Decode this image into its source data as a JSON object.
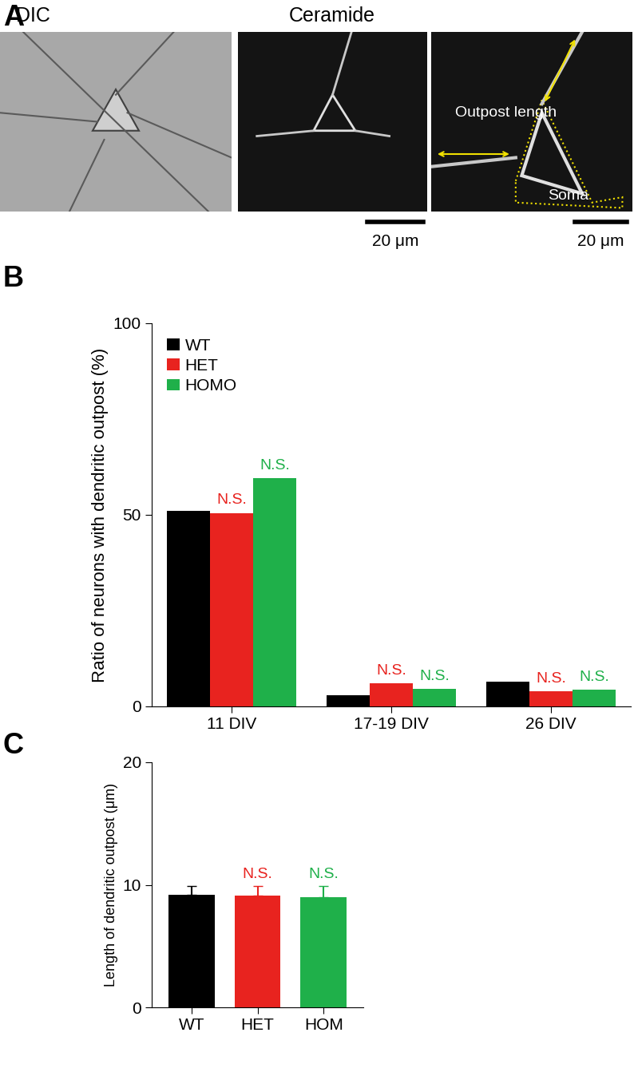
{
  "panel_labels": [
    "A",
    "B",
    "C"
  ],
  "image_panel": {
    "titles": [
      "DIC",
      "Ceramide"
    ],
    "annotations": [
      "Outpost length",
      "Soma"
    ],
    "scale_bars": [
      "20 μm",
      "20 μm"
    ]
  },
  "chart_data": [
    {
      "type": "bar",
      "y_label": "Ratio of neurons with dendritic outpost (%)",
      "categories": [
        "11 DIV",
        "17-19 DIV",
        "26 DIV"
      ],
      "series": [
        {
          "name": "WT",
          "color": "#000000",
          "values": [
            51,
            3,
            6.5
          ]
        },
        {
          "name": "HET",
          "color": "#e8231f",
          "values": [
            50.5,
            6,
            4
          ],
          "significance": [
            "N.S.",
            "N.S.",
            "N.S."
          ]
        },
        {
          "name": "HOMO",
          "color": "#1fb04a",
          "values": [
            59.5,
            4.5,
            4.3
          ],
          "significance": [
            "N.S.",
            "N.S.",
            "N.S."
          ]
        }
      ],
      "ylim": [
        0,
        100
      ],
      "yticks": [
        0,
        50,
        100
      ],
      "legend": "upper left"
    },
    {
      "type": "bar",
      "y_label": "Length of dendritic outpost (μm)",
      "categories": [
        "WT",
        "HET",
        "HOM"
      ],
      "values": [
        9.2,
        9.1,
        9.0
      ],
      "errors": [
        0.7,
        0.8,
        0.9
      ],
      "colors": [
        "#000000",
        "#e8231f",
        "#1fb04a"
      ],
      "significance": [
        null,
        "N.S.",
        "N.S."
      ],
      "ylim": [
        0,
        20
      ],
      "yticks": [
        0,
        10,
        20
      ]
    }
  ]
}
